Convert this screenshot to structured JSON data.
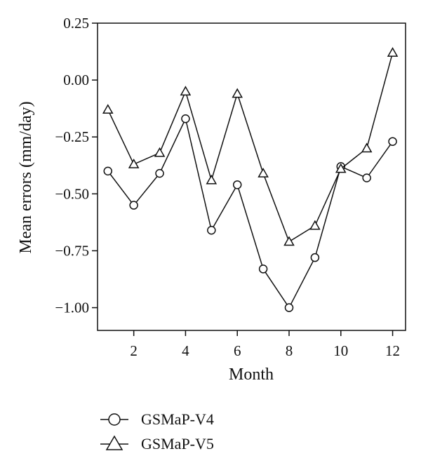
{
  "chart_data": {
    "type": "line",
    "xlabel": "Month",
    "ylabel": "Mean errors (mm/day)",
    "x": [
      1,
      2,
      3,
      4,
      5,
      6,
      7,
      8,
      9,
      10,
      11,
      12
    ],
    "xlim": [
      0.6,
      12.5
    ],
    "ylim": [
      -1.1,
      0.25
    ],
    "x_ticks": [
      2,
      4,
      6,
      8,
      10,
      12
    ],
    "x_tick_labels": [
      "2",
      "4",
      "6",
      "8",
      "10",
      "12"
    ],
    "y_ticks": [
      0.25,
      0.0,
      -0.25,
      -0.5,
      -0.75,
      -1.0
    ],
    "y_tick_labels": [
      "0.25",
      "0.00",
      "−0.25",
      "−0.50",
      "−0.75",
      "−1.00"
    ],
    "grid": false,
    "legend_position": "bottom-left",
    "series": [
      {
        "name": "GSMaP-V4",
        "marker": "circle",
        "values": [
          -0.4,
          -0.55,
          -0.41,
          -0.17,
          -0.66,
          -0.46,
          -0.83,
          -1.0,
          -0.78,
          -0.38,
          -0.43,
          -0.27
        ]
      },
      {
        "name": "GSMaP-V5",
        "marker": "triangle",
        "values": [
          -0.13,
          -0.37,
          -0.32,
          -0.05,
          -0.44,
          -0.06,
          -0.41,
          -0.71,
          -0.64,
          -0.39,
          -0.3,
          0.12
        ]
      }
    ],
    "colors": {
      "line": "#111111",
      "marker_fill": "#ffffff"
    }
  }
}
